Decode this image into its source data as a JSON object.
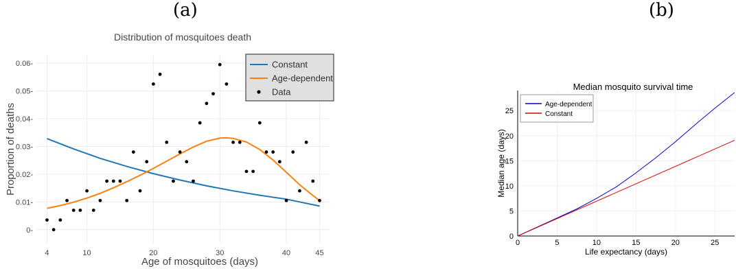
{
  "panels": {
    "a": "(a)",
    "b": "(b)"
  },
  "chart_data": [
    {
      "type": "line",
      "title": "Distribution of mosquitoes death",
      "xlabel": "Age of mosquitoes (days)",
      "ylabel": "Proportion of deaths",
      "xlim": [
        2.3,
        46.5
      ],
      "ylim": [
        -0.005,
        0.063
      ],
      "x_ticks": [
        4,
        10,
        20,
        30,
        40,
        45
      ],
      "y_ticks": [
        0,
        0.01,
        0.02,
        0.03,
        0.04,
        0.05,
        0.06
      ],
      "y_tick_labels": [
        "0-",
        "0.01-",
        "0.02-",
        "0.03-",
        "0.04-",
        "0.05-",
        "0.06-"
      ],
      "grid": true,
      "legend": "top-right",
      "series": [
        {
          "name": "Constant",
          "kind": "line",
          "color": "#1f77b4",
          "x": [
            4,
            8,
            12,
            16,
            20,
            24,
            28,
            32,
            36,
            40,
            45
          ],
          "y": [
            0.0328,
            0.0291,
            0.0257,
            0.0228,
            0.0202,
            0.0179,
            0.0158,
            0.014,
            0.0124,
            0.011,
            0.0085
          ]
        },
        {
          "name": "Age-dependent",
          "kind": "line",
          "color": "#ff7f0e",
          "x": [
            4,
            6,
            8,
            10,
            12,
            14,
            16,
            18,
            20,
            22,
            24,
            26,
            28,
            30,
            31,
            32,
            34,
            36,
            38,
            40,
            42,
            44,
            45
          ],
          "y": [
            0.0077,
            0.0087,
            0.0099,
            0.0114,
            0.0131,
            0.0151,
            0.0173,
            0.0196,
            0.0221,
            0.0247,
            0.0273,
            0.0298,
            0.0319,
            0.033,
            0.0331,
            0.0329,
            0.0316,
            0.0289,
            0.0251,
            0.0207,
            0.0162,
            0.0123,
            0.0105
          ]
        },
        {
          "name": "Data",
          "kind": "scatter",
          "color": "#000000",
          "x": [
            4,
            5,
            6,
            7,
            8,
            9,
            10,
            11,
            12,
            13,
            14,
            15,
            16,
            17,
            18,
            19,
            20,
            21,
            22,
            23,
            24,
            25,
            26,
            27,
            28,
            29,
            30,
            31,
            32,
            33,
            34,
            35,
            36,
            37,
            38,
            39,
            40,
            41,
            42,
            43,
            44,
            45
          ],
          "y": [
            0.0035,
            0.0,
            0.0035,
            0.0105,
            0.007,
            0.007,
            0.014,
            0.007,
            0.0105,
            0.0175,
            0.0175,
            0.0175,
            0.0105,
            0.028,
            0.014,
            0.0245,
            0.0525,
            0.056,
            0.0315,
            0.0175,
            0.028,
            0.0245,
            0.0175,
            0.0385,
            0.0455,
            0.049,
            0.0595,
            0.0525,
            0.0315,
            0.0315,
            0.021,
            0.021,
            0.0385,
            0.028,
            0.028,
            0.0245,
            0.0105,
            0.028,
            0.014,
            0.0315,
            0.0175,
            0.0105
          ]
        }
      ]
    },
    {
      "type": "line",
      "title": "Median mosquito survival time",
      "xlabel": "Life expectancy (days)",
      "ylabel": "Median age (days)",
      "xlim": [
        0,
        27.5
      ],
      "ylim": [
        0,
        29
      ],
      "x_ticks": [
        0,
        5,
        10,
        15,
        20,
        25
      ],
      "y_ticks": [
        0,
        5,
        10,
        15,
        20,
        25
      ],
      "grid": true,
      "legend": "top-left",
      "series": [
        {
          "name": "Age-dependent",
          "color": "#0000cc",
          "x": [
            0,
            2.5,
            5,
            7.5,
            10,
            12.5,
            15,
            17.5,
            20,
            22.5,
            25,
            27.5
          ],
          "y": [
            0,
            1.8,
            3.6,
            5.4,
            7.5,
            9.8,
            12.6,
            15.6,
            18.8,
            22.2,
            25.5,
            28.6
          ]
        },
        {
          "name": "Constant",
          "color": "#dd0000",
          "x": [
            0,
            27.5
          ],
          "y": [
            0,
            19.1
          ]
        }
      ]
    }
  ]
}
